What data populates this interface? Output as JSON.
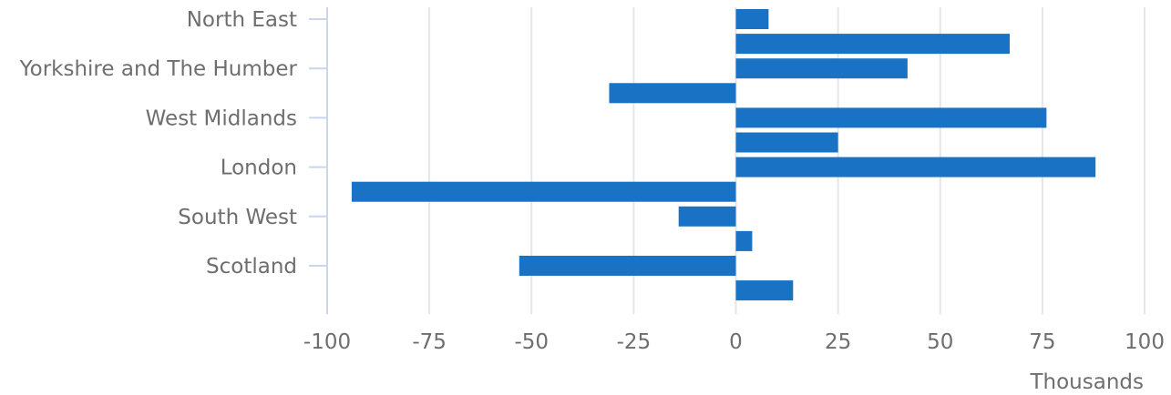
{
  "chart_data": {
    "type": "bar",
    "orientation": "horizontal",
    "categories": [
      "North East",
      "",
      "Yorkshire and The Humber",
      "",
      "West Midlands",
      "",
      "London",
      "",
      "South West",
      "",
      "Scotland",
      ""
    ],
    "series": [
      {
        "values": [
          8,
          67,
          42,
          -31,
          76,
          25,
          88,
          -94,
          -14,
          4,
          -53,
          14
        ]
      }
    ],
    "x_unit_label": "Thousands",
    "xlim": [
      -100,
      100
    ],
    "x_ticks": [
      -100,
      -75,
      -50,
      -25,
      0,
      25,
      50,
      75,
      100
    ],
    "grid": true,
    "legend": "none",
    "colors": {
      "bar": "#1a72c4",
      "grid": "#e3e6ea",
      "axis": "#c9d6ec",
      "text": "#6e6e6e"
    }
  }
}
